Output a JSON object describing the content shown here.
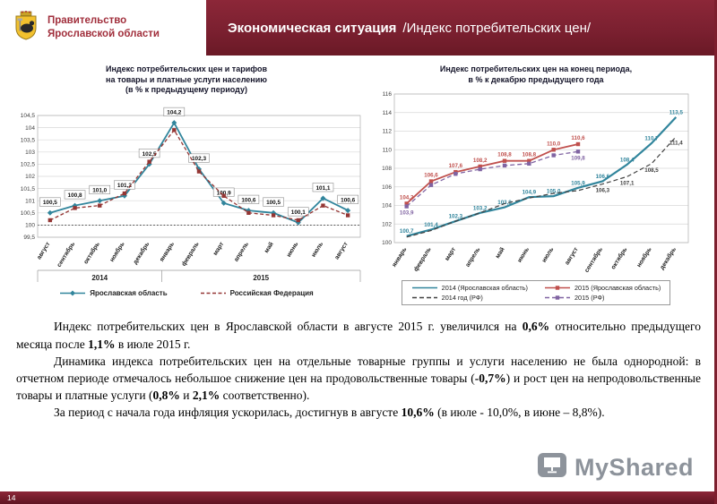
{
  "header": {
    "org": [
      "Правительство",
      "Ярославской области"
    ],
    "title_bold": "Экономическая ситуация",
    "title_rest": "/Индекс потребительских цен/"
  },
  "colors": {
    "maroon": "#7d1f2e",
    "teal": "#31859c",
    "red_2015": "#c0504d",
    "purple_rf_2015": "#8064a2",
    "rf_monthly_dashed": "#943634",
    "rf_2014_dashed": "#404040"
  },
  "chart_data": [
    {
      "type": "line",
      "title_lines": [
        "Индекс потребительских цен и тарифов",
        "на товары и платные услуги населению",
        "(в % к предыдущему периоду)"
      ],
      "categories": [
        "август",
        "сентябрь",
        "октябрь",
        "ноябрь",
        "декабрь",
        "январь",
        "февраль",
        "март",
        "апрель",
        "май",
        "июнь",
        "июль",
        "август"
      ],
      "year_groups": [
        {
          "label": "2014",
          "span": 5
        },
        {
          "label": "2015",
          "span": 8
        }
      ],
      "ylim": [
        99.5,
        104.5
      ],
      "ystep": 0.5,
      "ref_line": 100,
      "series": [
        {
          "name": "Ярославская область",
          "color": "#31859c",
          "width": 1.8,
          "dash": "",
          "marker": "diamond",
          "labels_on": true,
          "boxed": true,
          "values": [
            100.5,
            100.8,
            101.0,
            101.2,
            102.5,
            104.2,
            102.3,
            100.9,
            100.6,
            100.5,
            100.1,
            101.1,
            100.6
          ]
        },
        {
          "name": "Российская Федерация",
          "color": "#943634",
          "width": 1.3,
          "dash": "4 2.5",
          "marker": "square",
          "labels_on": false,
          "values": [
            100.2,
            100.7,
            100.8,
            101.3,
            102.6,
            103.9,
            102.2,
            101.2,
            100.5,
            100.4,
            100.2,
            100.8,
            100.4
          ]
        }
      ],
      "legend": [
        {
          "label": "Ярославская область",
          "color": "#31859c",
          "dash": "",
          "marker": "diamond"
        },
        {
          "label": "Российская Федерация",
          "color": "#943634",
          "dash": "4 2.5",
          "marker": "none"
        }
      ]
    },
    {
      "type": "line",
      "title_lines": [
        "Индекс потребительских цен на конец периода,",
        "в % к декабрю предыдущего года"
      ],
      "categories": [
        "январь",
        "февраль",
        "март",
        "апрель",
        "май",
        "июнь",
        "июль",
        "август",
        "сентябрь",
        "октябрь",
        "ноябрь",
        "декабрь"
      ],
      "ylim": [
        100,
        116
      ],
      "ystep": 2,
      "series": [
        {
          "name": "2014 (Ярославская область)",
          "color": "#31859c",
          "width": 2.2,
          "dash": "",
          "marker": "none",
          "labels_on": true,
          "label_dy": -3.5,
          "values": [
            100.7,
            101.4,
            102.3,
            103.2,
            103.8,
            104.9,
            105.0,
            105.9,
            106.6,
            108.4,
            110.7,
            113.5
          ]
        },
        {
          "name": "2015 (Ярославская область)",
          "color": "#c0504d",
          "width": 1.8,
          "dash": "",
          "marker": "square",
          "labels_on": true,
          "label_dy": -5,
          "values": [
            104.2,
            106.6,
            107.6,
            108.2,
            108.8,
            108.8,
            110.0,
            110.6
          ]
        },
        {
          "name": "2014 год (РФ)",
          "color": "#404040",
          "width": 1.2,
          "dash": "5 3",
          "marker": "none",
          "label_indices": [
            8,
            9,
            10,
            11
          ],
          "label_dy": 9,
          "values": [
            100.6,
            101.3,
            102.3,
            103.2,
            104.2,
            104.8,
            105.3,
            105.6,
            106.3,
            107.1,
            108.5,
            111.4
          ]
        },
        {
          "name": "2015 (РФ)",
          "color": "#8064a2",
          "width": 1.3,
          "dash": "5 3",
          "marker": "square",
          "label_indices": [
            0,
            7
          ],
          "label_dy": 9,
          "values": [
            103.9,
            106.2,
            107.4,
            107.9,
            108.3,
            108.5,
            109.4,
            109.8
          ]
        }
      ],
      "legend": [
        {
          "label": "2014 (Ярославская область)",
          "color": "#31859c",
          "dash": "",
          "marker": "none"
        },
        {
          "label": "2015 (Ярославская область)",
          "color": "#c0504d",
          "dash": "",
          "marker": "square"
        },
        {
          "label": "2014 год (РФ)",
          "color": "#404040",
          "dash": "5 3",
          "marker": "none"
        },
        {
          "label": "2015 (РФ)",
          "color": "#8064a2",
          "dash": "5 3",
          "marker": "square"
        }
      ]
    }
  ],
  "body": {
    "paragraphs": [
      [
        {
          "t": "Индекс потребительских цен в Ярославской области в августе 2015 г. увеличился на ",
          "b": false
        },
        {
          "t": "0,6%",
          "b": true
        },
        {
          "t": " относительно предыдущего месяца после ",
          "b": false
        },
        {
          "t": "1,1%",
          "b": true
        },
        {
          "t": " в июле 2015 г.",
          "b": false
        }
      ],
      [
        {
          "t": "Динамика индекса потребительских цен на отдельные товарные группы и услуги населению не была однородной: в отчетном периоде отмечалось небольшое снижение цен на продовольственные товары (",
          "b": false
        },
        {
          "t": "-0,7%",
          "b": true
        },
        {
          "t": ") и рост цен на непродовольственные товары и платные услуги (",
          "b": false
        },
        {
          "t": "0,8%",
          "b": true
        },
        {
          "t": " и ",
          "b": false
        },
        {
          "t": "2,1%",
          "b": true
        },
        {
          "t": " соответственно).",
          "b": false
        }
      ],
      [
        {
          "t": "За период с начала года инфляция ускорилась, достигнув в августе ",
          "b": false
        },
        {
          "t": "10,6%",
          "b": true
        },
        {
          "t": " (в июле - 10,0%, в июне – 8,8%).",
          "b": false
        }
      ]
    ]
  },
  "watermark": {
    "brand": "MyShared"
  },
  "footer": {
    "page": "14"
  }
}
